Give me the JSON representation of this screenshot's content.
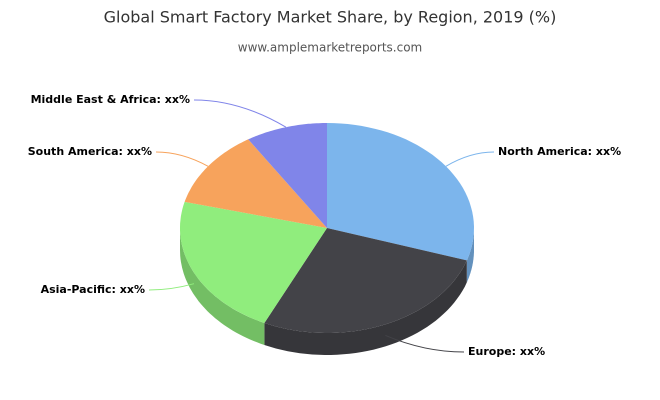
{
  "chart_data": {
    "type": "pie3d",
    "title": "Global Smart Factory Market Share, by Region, 2019 (%)",
    "subtitle": "www.amplemarketreports.com",
    "categories": [
      "North America",
      "Europe",
      "Asia-Pacific",
      "South America",
      "Middle East & Africa"
    ],
    "values": [
      30,
      27,
      22,
      12,
      9
    ],
    "value_labels": [
      "North America: xx%",
      "Europe: xx%",
      "Asia-Pacific: xx%",
      "South America: xx%",
      "Middle East & Africa: xx%"
    ],
    "colors": [
      "#7cb5ec",
      "#434348",
      "#90ed7d",
      "#f7a35c",
      "#8085e9"
    ]
  }
}
